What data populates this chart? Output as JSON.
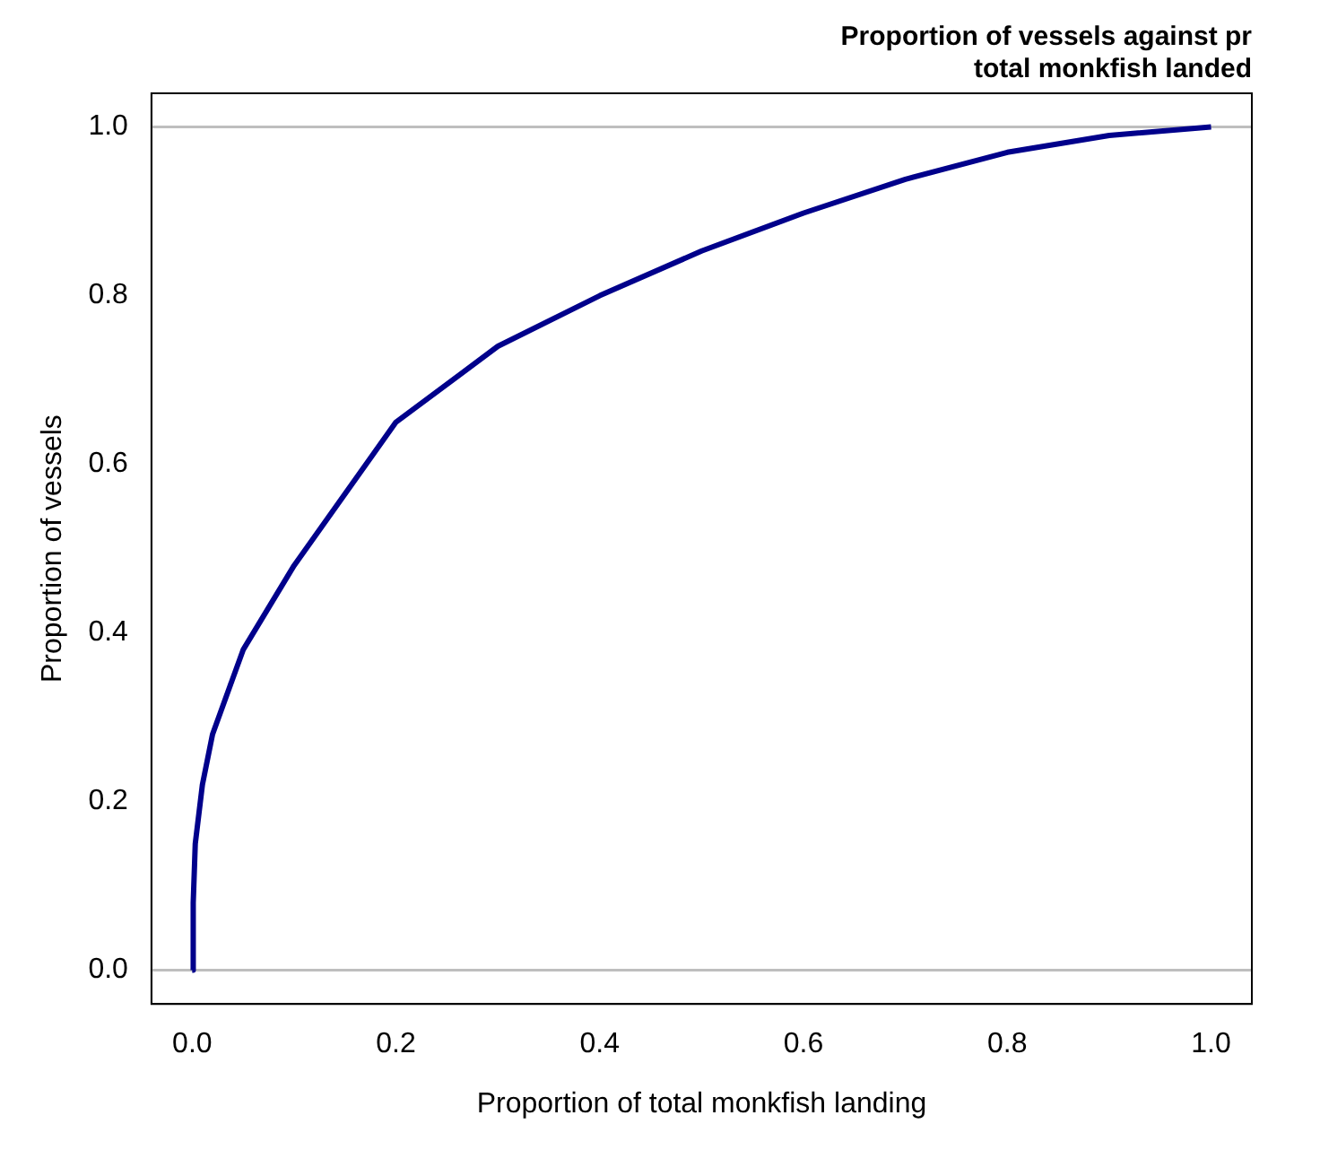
{
  "chart_data": {
    "type": "line",
    "title": "Proportion of vessels against pr\ntotal monkfish landed",
    "xlabel": "Proportion of total monkfish landing",
    "ylabel": "Proportion of vessels",
    "series": [
      {
        "color": "#00008b",
        "x": [
          0,
          0.001,
          0.003,
          0.01,
          0.02,
          0.05,
          0.1,
          0.2,
          0.3,
          0.4,
          0.5,
          0.6,
          0.7,
          0.8,
          0.9,
          1
        ],
        "values": [
          0,
          0.08,
          0.15,
          0.22,
          0.28,
          0.38,
          0.48,
          0.65,
          0.74,
          0.8,
          0.853,
          0.898,
          0.938,
          0.97,
          0.99,
          1
        ]
      }
    ],
    "xlim": [
      -0.04,
      1.04
    ],
    "ylim": [
      -0.04,
      1.04
    ],
    "xticks": [
      {
        "value": 0,
        "label": "0.0"
      },
      {
        "value": 0.2,
        "label": "0.2"
      },
      {
        "value": 0.4,
        "label": "0.4"
      },
      {
        "value": 0.6,
        "label": "0.6"
      },
      {
        "value": 0.8,
        "label": "0.8"
      },
      {
        "value": 1,
        "label": "1.0"
      }
    ],
    "yticks": [
      {
        "value": 0,
        "label": "0.0"
      },
      {
        "value": 0.2,
        "label": "0.2"
      },
      {
        "value": 0.4,
        "label": "0.4"
      },
      {
        "value": 0.6,
        "label": "0.6"
      },
      {
        "value": 0.8,
        "label": "0.8"
      },
      {
        "value": 1,
        "label": "1.0"
      }
    ],
    "ref_lines": [
      {
        "axis": "y",
        "value": 0,
        "color": "#bebebe"
      },
      {
        "axis": "y",
        "value": 1,
        "color": "#bebebe"
      }
    ],
    "grid": false,
    "legend": false,
    "marker": "none",
    "line_style": "solid"
  }
}
